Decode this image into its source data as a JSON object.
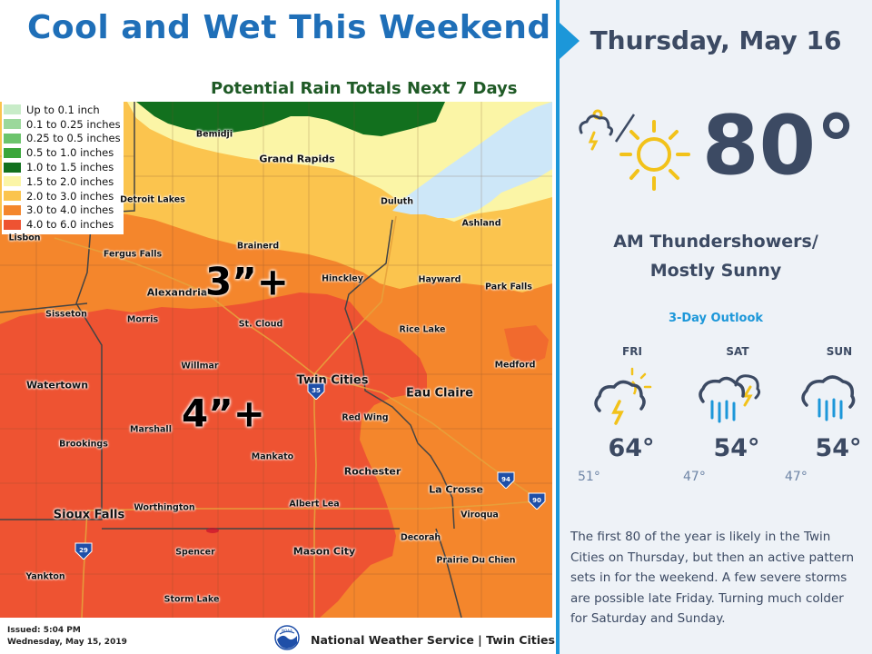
{
  "title": "Cool and Wet This Weekend",
  "map": {
    "subtitle": "Potential Rain Totals Next 7 Days",
    "legend": [
      {
        "label": "Up to 0.1 inch",
        "color": "#c8ecc8"
      },
      {
        "label": "0.1 to 0.25 inches",
        "color": "#9bd89b"
      },
      {
        "label": "0.25 to 0.5 inches",
        "color": "#6cc46c"
      },
      {
        "label": "0.5 to 1.0 inches",
        "color": "#3aa63a"
      },
      {
        "label": "1.0 to 1.5 inches",
        "color": "#12701e"
      },
      {
        "label": "1.5 to 2.0 inches",
        "color": "#fbf5a6"
      },
      {
        "label": "2.0 to 3.0 inches",
        "color": "#fbc44e"
      },
      {
        "label": "3.0 to 4.0 inches",
        "color": "#f4862c"
      },
      {
        "label": "4.0 to 6.0 inches",
        "color": "#ee5332"
      }
    ],
    "callouts": {
      "north": "3”+",
      "south": "4”+"
    },
    "cities": {
      "bemidji": "Bemidji",
      "grand_rapids": "Grand Rapids",
      "detroit_lakes": "Detroit Lakes",
      "duluth": "Duluth",
      "ashland": "Ashland",
      "lisbon": "Lisbon",
      "fergus_falls": "Fergus Falls",
      "brainerd": "Brainerd",
      "hinckley": "Hinckley",
      "hayward": "Hayward",
      "park_falls": "Park Falls",
      "alexandria": "Alexandria",
      "sisseton": "Sisseton",
      "morris": "Morris",
      "st_cloud": "St. Cloud",
      "rice_lake": "Rice Lake",
      "willmar": "Willmar",
      "medford": "Medford",
      "watertown": "Watertown",
      "twin_cities": "Twin Cities",
      "eau_claire": "Eau Claire",
      "red_wing": "Red Wing",
      "marshall": "Marshall",
      "brookings": "Brookings",
      "mankato": "Mankato",
      "rochester": "Rochester",
      "la_crosse": "La Crosse",
      "worthington": "Worthington",
      "albert_lea": "Albert Lea",
      "sioux_falls": "Sioux Falls",
      "viroqua": "Viroqua",
      "decorah": "Decorah",
      "spencer": "Spencer",
      "mason_city": "Mason City",
      "prairie_du_chien": "Prairie Du Chien",
      "yankton": "Yankton",
      "storm_lake": "Storm Lake"
    },
    "highways": {
      "i35": "35",
      "i94": "94",
      "i90": "90",
      "i29": "29"
    }
  },
  "issued": {
    "time": "Issued: 5:04 PM",
    "date": "Wednesday, May 15, 2019"
  },
  "footer": {
    "credit": "National Weather Service | Twin Cities",
    "logo_text": "NOAA"
  },
  "today": {
    "date": "Thursday, May 16",
    "temp": "80°",
    "condition_line1": "AM Thundershowers/",
    "condition_line2": "Mostly Sunny",
    "icons": [
      "thunderstorm-cloud-icon",
      "sun-icon"
    ]
  },
  "outlook": {
    "title": "3-Day Outlook",
    "days": [
      {
        "name": "FRI",
        "high": "64°",
        "low": "51°",
        "icon": "thunderstorm-sun-icon"
      },
      {
        "name": "SAT",
        "high": "54°",
        "low": "47°",
        "icon": "rain-thunder-icon"
      },
      {
        "name": "SUN",
        "high": "54°",
        "low": "47°",
        "icon": "rain-icon"
      }
    ]
  },
  "summary": "The first 80 of the year is likely in the Twin Cities on Thursday, but then an active pattern sets in for the weekend.  A few severe storms are possible late Friday. Turning much colder for Saturday and Sunday.",
  "colors": {
    "accent_blue": "#1c97d9",
    "title_blue": "#1f6fb8",
    "text_slate": "#3c4a63",
    "subtitle_green": "#1f5a26"
  }
}
